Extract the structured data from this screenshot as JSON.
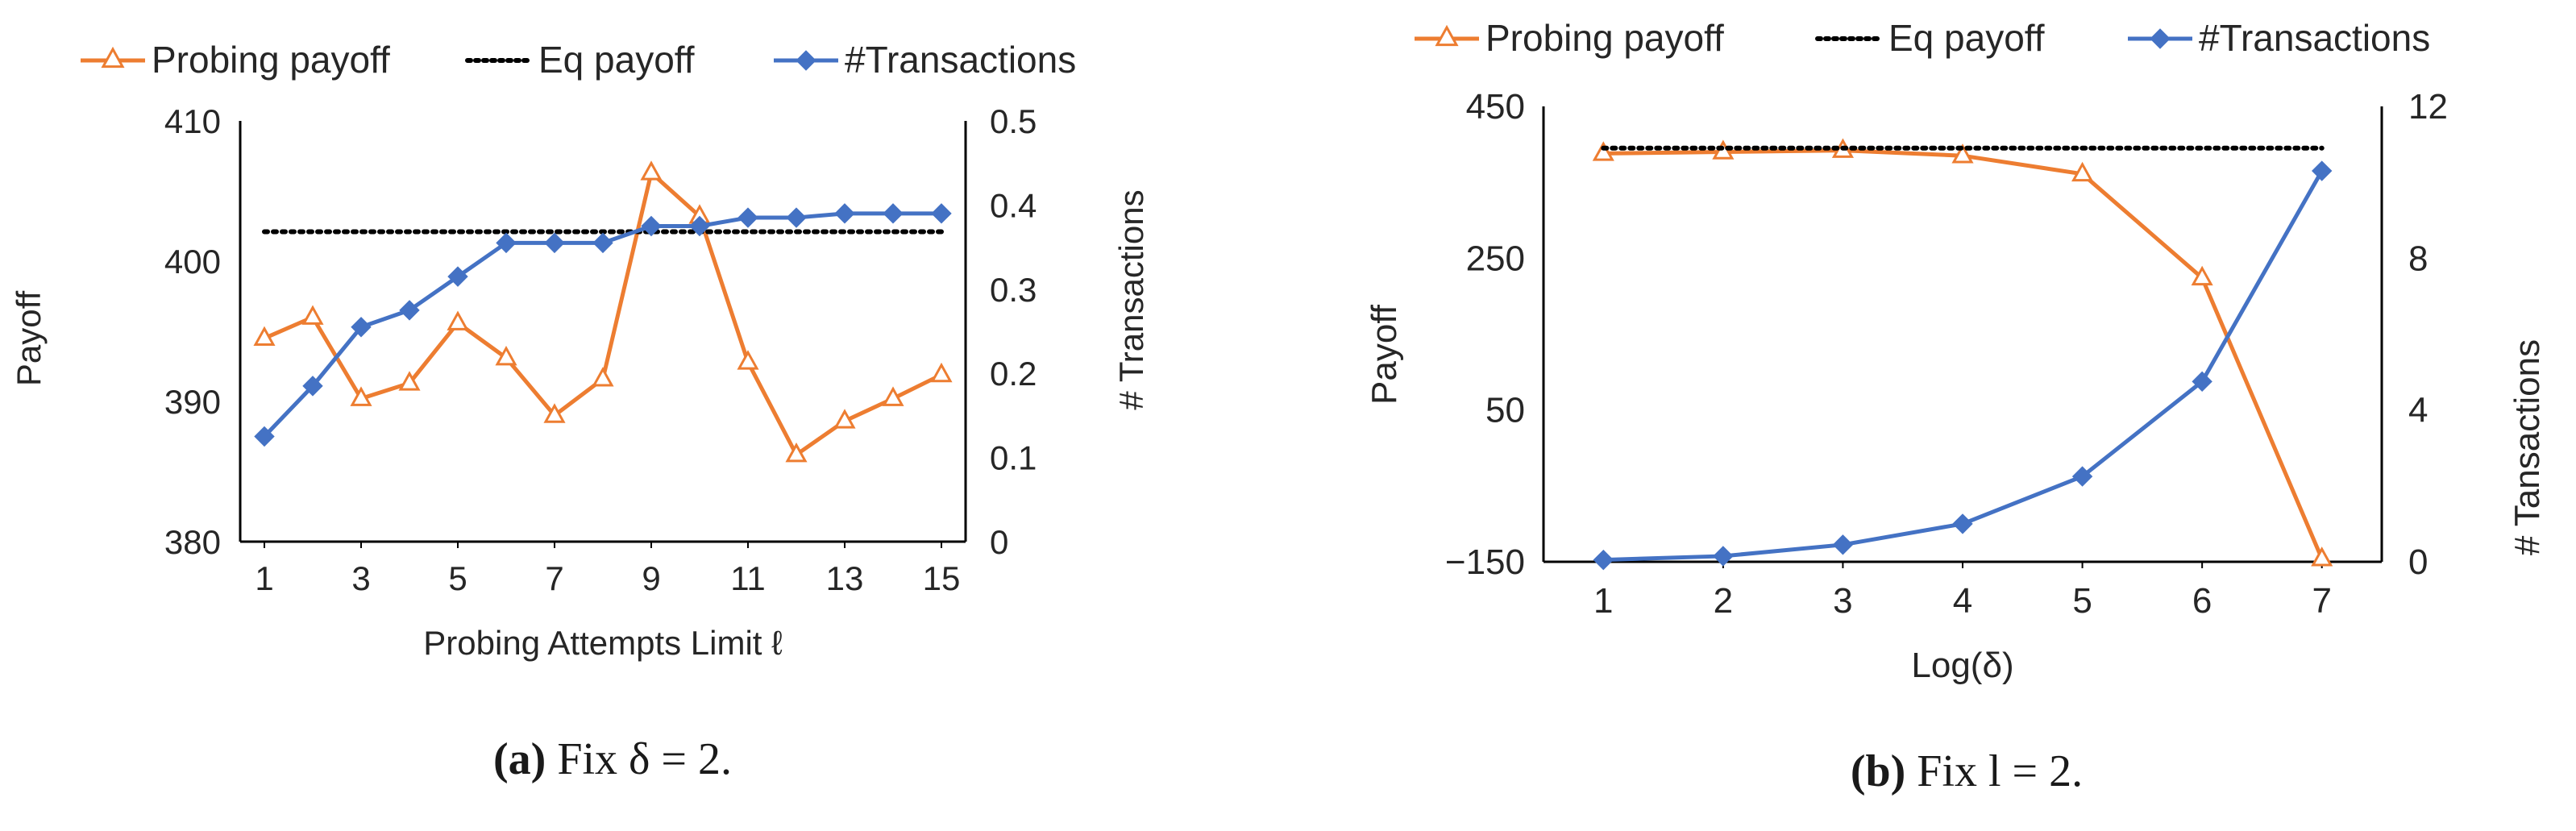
{
  "colors": {
    "probing": "#ED7D31",
    "eq": "#000000",
    "transactions": "#4472C4",
    "axis": "#000000",
    "text": "#262626"
  },
  "chart_data": [
    {
      "type": "line",
      "legend": [
        "Probing payoff",
        "Eq payoff",
        "#Transactions"
      ],
      "legend_position": "top",
      "xlabel": "Probing Attempts Limit ℓ",
      "ylabel": "Payoff",
      "y2label": "# Transactions",
      "x": [
        1,
        2,
        3,
        4,
        5,
        6,
        7,
        8,
        9,
        10,
        11,
        12,
        13,
        14,
        15
      ],
      "x_ticks": [
        "1",
        "3",
        "5",
        "7",
        "9",
        "11",
        "13",
        "15"
      ],
      "x_tick_values": [
        1,
        3,
        5,
        7,
        9,
        11,
        13,
        15
      ],
      "ylim": [
        380,
        410
      ],
      "y_ticks": [
        "380",
        "390",
        "400",
        "410"
      ],
      "y_tick_values": [
        380,
        390,
        400,
        410
      ],
      "y2lim": [
        0,
        0.5
      ],
      "y2_ticks": [
        "0",
        "0.1",
        "0.2",
        "0.3",
        "0.4",
        "0.5"
      ],
      "y2_tick_values": [
        0,
        0.1,
        0.2,
        0.3,
        0.4,
        0.5
      ],
      "series": [
        {
          "name": "Probing payoff",
          "axis": "left",
          "marker": "triangle",
          "values": [
            394.5,
            396,
            390.2,
            391.3,
            395.6,
            393.1,
            389,
            391.6,
            406.3,
            403.2,
            392.8,
            386.2,
            388.6,
            390.2,
            391.9
          ]
        },
        {
          "name": "Eq payoff",
          "axis": "left",
          "style": "dotted",
          "values": [
            402.1,
            402.1,
            402.1,
            402.1,
            402.1,
            402.1,
            402.1,
            402.1,
            402.1,
            402.1,
            402.1,
            402.1,
            402.1,
            402.1,
            402.1
          ]
        },
        {
          "name": "#Transactions",
          "axis": "right",
          "marker": "diamond",
          "values": [
            0.125,
            0.185,
            0.255,
            0.275,
            0.315,
            0.355,
            0.355,
            0.355,
            0.375,
            0.375,
            0.385,
            0.385,
            0.39,
            0.39,
            0.39
          ]
        }
      ],
      "caption_label": "(a)",
      "caption_text": "Fix δ = 2."
    },
    {
      "type": "line",
      "legend": [
        "Probing payoff",
        "Eq payoff",
        "#Transactions"
      ],
      "legend_position": "top",
      "xlabel": "Log(δ)",
      "ylabel": "Payoff",
      "y2label": "# Tansactions",
      "x": [
        1,
        2,
        3,
        4,
        5,
        6,
        7
      ],
      "x_ticks": [
        "1",
        "2",
        "3",
        "4",
        "5",
        "6",
        "7"
      ],
      "x_tick_values": [
        1,
        2,
        3,
        4,
        5,
        6,
        7
      ],
      "ylim": [
        -150,
        450
      ],
      "y_ticks": [
        "−150",
        "50",
        "250",
        "450"
      ],
      "y_tick_values": [
        -150,
        50,
        250,
        450
      ],
      "y2lim": [
        0,
        12
      ],
      "y2_ticks": [
        "0",
        "4",
        "8",
        "12"
      ],
      "y2_tick_values": [
        0,
        4,
        8,
        12
      ],
      "series": [
        {
          "name": "Probing payoff",
          "axis": "left",
          "marker": "triangle",
          "values": [
            388,
            390,
            392,
            385,
            361,
            224,
            -146
          ]
        },
        {
          "name": "Eq payoff",
          "axis": "left",
          "style": "dotted",
          "values": [
            395,
            395,
            395,
            395,
            395,
            395,
            395
          ]
        },
        {
          "name": "#Transactions",
          "axis": "right",
          "marker": "diamond",
          "values": [
            0.05,
            0.15,
            0.45,
            1.0,
            2.25,
            4.75,
            10.3
          ]
        }
      ],
      "caption_label": "(b)",
      "caption_text": "Fix l = 2."
    }
  ]
}
